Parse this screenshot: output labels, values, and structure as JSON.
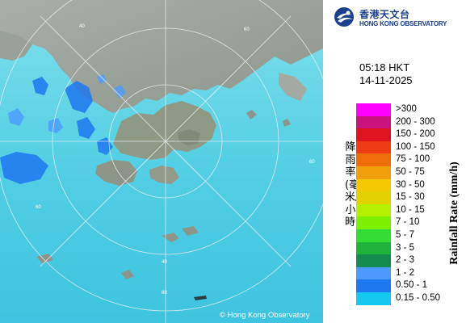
{
  "logo": {
    "name_zh": "香港天文台",
    "name_en": "HONG KONG OBSERVATORY"
  },
  "timestamp": {
    "time": "05:18 HKT",
    "date": "14-11-2025"
  },
  "legend": {
    "title_en": "Rainfall Rate (mm/h)",
    "title_zh": "降雨率(毫米/小時)",
    "items": [
      {
        "label": ">300",
        "color": "#ff00ff"
      },
      {
        "label": "200 - 300",
        "color": "#c8147c"
      },
      {
        "label": "150 - 200",
        "color": "#e0141e"
      },
      {
        "label": "100 - 150",
        "color": "#f03c14"
      },
      {
        "label": "75 - 100",
        "color": "#f06e0a"
      },
      {
        "label": "50 - 75",
        "color": "#f0a00a"
      },
      {
        "label": "30 - 50",
        "color": "#f5c800"
      },
      {
        "label": "15 - 30",
        "color": "#e1d200"
      },
      {
        "label": "10 - 15",
        "color": "#b4f000"
      },
      {
        "label": "7 - 10",
        "color": "#7cf000"
      },
      {
        "label": "5 - 7",
        "color": "#32dc32"
      },
      {
        "label": "3 - 5",
        "color": "#1eb43c"
      },
      {
        "label": "2 - 3",
        "color": "#148c50"
      },
      {
        "label": "1 - 2",
        "color": "#4b9bff"
      },
      {
        "label": "0.50 - 1",
        "color": "#1e78f0"
      },
      {
        "label": "0.15 - 0.50",
        "color": "#14c8f0"
      }
    ]
  },
  "map": {
    "range_rings": [
      "40",
      "60",
      "60",
      "60",
      "40",
      "60"
    ],
    "copyright": "© Hong Kong Observatory"
  }
}
